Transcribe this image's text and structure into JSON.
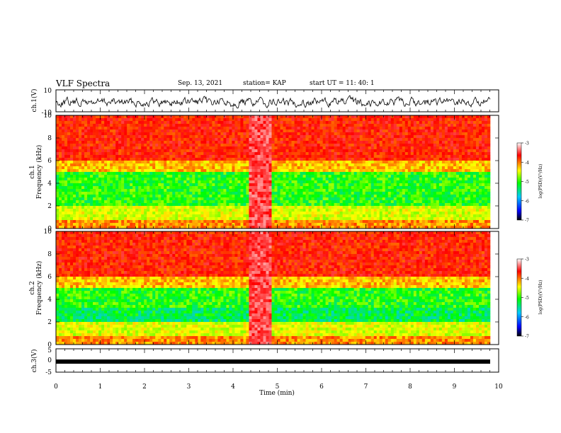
{
  "header": {
    "title": "VLF Spectra",
    "date": "Sep. 13, 2021",
    "station": "station= KAP",
    "start": "start  UT  =   11: 40: 1"
  },
  "chart_data": [
    {
      "type": "line",
      "ylabel": "ch.1(V)",
      "ylim": [
        -10,
        10
      ],
      "yticks": [
        "10",
        "-10"
      ],
      "description_series": "ch.1 waveform",
      "xlim": [
        0,
        10
      ]
    },
    {
      "type": "heatmap",
      "ylabel_line1": "ch.1",
      "ylabel_line2": "Frequency  (kHz)",
      "ylim": [
        0,
        10
      ],
      "yticks": [
        "0",
        "2",
        "4",
        "6",
        "8",
        "10"
      ],
      "xlim": [
        0,
        10
      ],
      "colorbar": {
        "label": "log(PSD)(V²/Hz)",
        "range": [
          -7,
          -3
        ],
        "ticks": [
          "-3",
          "-4",
          "-5",
          "-6",
          "-7"
        ]
      }
    },
    {
      "type": "heatmap",
      "ylabel_line1": "ch.2",
      "ylabel_line2": "Frequency  (kHz)",
      "ylim": [
        0,
        10
      ],
      "yticks": [
        "0",
        "2",
        "4",
        "6",
        "8",
        "10"
      ],
      "xlim": [
        0,
        10
      ],
      "colorbar": {
        "label": "log(PSD)(V²/Hz)",
        "range": [
          -7,
          -3
        ],
        "ticks": [
          "-3",
          "-4",
          "-5",
          "-6",
          "-7"
        ]
      }
    },
    {
      "type": "line",
      "ylabel": "ch.3(V)",
      "ylim": [
        -5,
        5
      ],
      "yticks": [
        "5",
        "0",
        "-5"
      ],
      "xlim": [
        0,
        10
      ],
      "series_level": -0.5,
      "xlabel": "Time  (min)",
      "xticks": [
        "0",
        "1",
        "2",
        "3",
        "4",
        "5",
        "6",
        "7",
        "8",
        "9",
        "10"
      ]
    }
  ],
  "colors": {
    "psd_scale": [
      "#000000",
      "#0000ff",
      "#00c8ff",
      "#00ff00",
      "#ffff00",
      "#ff0000",
      "#ffffff"
    ]
  }
}
